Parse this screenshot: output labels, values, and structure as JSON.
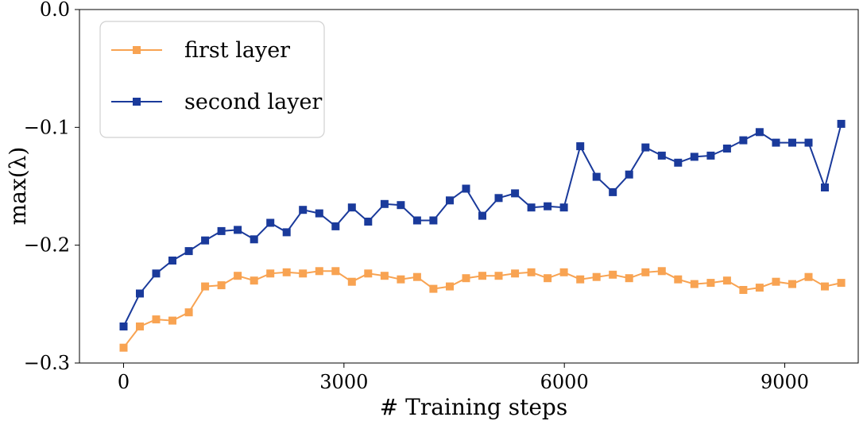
{
  "chart_data": {
    "type": "line",
    "title": "",
    "xlabel": "# Training steps",
    "ylabel": "max(λ)",
    "xlim": [
      -600,
      10000
    ],
    "ylim": [
      -0.3,
      0.0
    ],
    "xticks": [
      0,
      3000,
      6000,
      9000
    ],
    "xtick_labels": [
      "0",
      "3000",
      "6000",
      "9000"
    ],
    "yticks": [
      0.0,
      -0.1,
      -0.2,
      -0.3
    ],
    "ytick_labels": [
      "0.0",
      "−0.1",
      "−0.2",
      "−0.3"
    ],
    "grid": false,
    "legend_position": "top-left",
    "x": [
      0,
      222,
      444,
      666,
      888,
      1110,
      1332,
      1554,
      1776,
      1998,
      2220,
      2442,
      2664,
      2886,
      3108,
      3330,
      3552,
      3774,
      3996,
      4218,
      4440,
      4662,
      4884,
      5106,
      5328,
      5550,
      5772,
      5994,
      6216,
      6438,
      6660,
      6882,
      7104,
      7326,
      7548,
      7770,
      7992,
      8214,
      8436,
      8658,
      8880,
      9102,
      9324,
      9546,
      9768
    ],
    "series": [
      {
        "name": "first layer",
        "color": "#f8a352",
        "marker": "square",
        "values": [
          -0.287,
          -0.269,
          -0.263,
          -0.264,
          -0.257,
          -0.235,
          -0.234,
          -0.226,
          -0.23,
          -0.224,
          -0.223,
          -0.224,
          -0.222,
          -0.222,
          -0.231,
          -0.224,
          -0.226,
          -0.229,
          -0.227,
          -0.237,
          -0.235,
          -0.228,
          -0.226,
          -0.226,
          -0.224,
          -0.223,
          -0.228,
          -0.223,
          -0.229,
          -0.227,
          -0.225,
          -0.228,
          -0.223,
          -0.222,
          -0.229,
          -0.233,
          -0.232,
          -0.23,
          -0.238,
          -0.236,
          -0.231,
          -0.233,
          -0.227,
          -0.235,
          -0.232
        ]
      },
      {
        "name": "second layer",
        "color": "#1a3a9b",
        "marker": "square",
        "values": [
          -0.269,
          -0.241,
          -0.224,
          -0.213,
          -0.205,
          -0.196,
          -0.188,
          -0.187,
          -0.195,
          -0.181,
          -0.189,
          -0.17,
          -0.173,
          -0.184,
          -0.168,
          -0.18,
          -0.165,
          -0.166,
          -0.179,
          -0.179,
          -0.162,
          -0.152,
          -0.175,
          -0.16,
          -0.156,
          -0.168,
          -0.167,
          -0.168,
          -0.116,
          -0.142,
          -0.155,
          -0.14,
          -0.117,
          -0.124,
          -0.13,
          -0.125,
          -0.124,
          -0.118,
          -0.111,
          -0.104,
          -0.113,
          -0.113,
          -0.113,
          -0.151,
          -0.097
        ]
      }
    ]
  }
}
